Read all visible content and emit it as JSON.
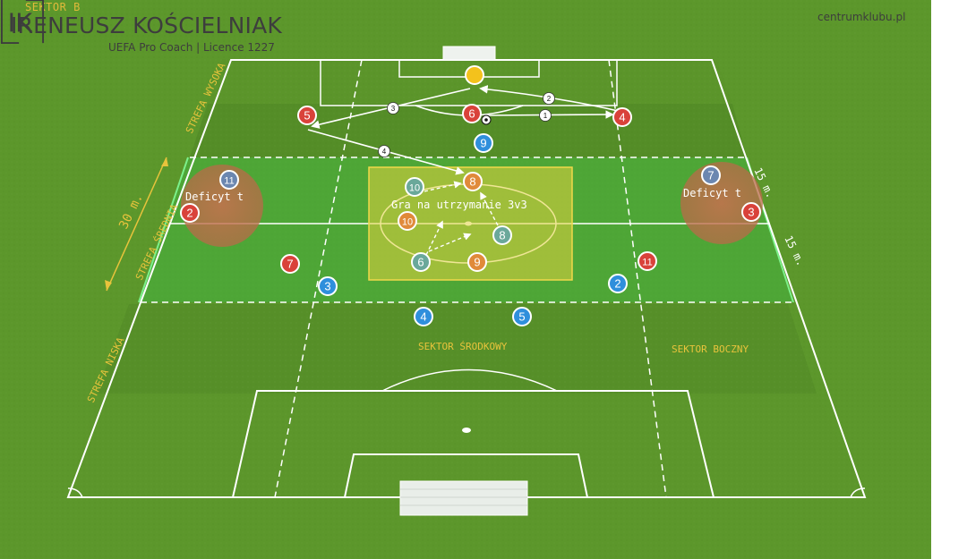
{
  "header": {
    "sector_label": "SEKTOR B",
    "coach_name": "IRENEUSZ KOŚCIELNIAK",
    "coach_subtitle": "UEFA Pro Coach  |  Licence 1227",
    "logo_text": "IK",
    "site": "centrumklubu.pl"
  },
  "zones": {
    "high": "STREFA WYSOKA",
    "middle": "STREFA ŚREDNIA",
    "low": "STREFA NISKA",
    "center_sector": "SEKTOR ŚRODKOWY",
    "side_sector": "SEKTOR BOCZNY"
  },
  "measurements": {
    "zone_depth": "30 m.",
    "right_upper": "15 m.",
    "right_lower": "15 m."
  },
  "annotations": {
    "deficit_left": "Deficyt t",
    "deficit_right": "Deficyt t",
    "rondo": "Gra na utrzymanie 3v3"
  },
  "colors": {
    "grass_light": "#5f9a2c",
    "grass_dark": "#4b8022",
    "zone_highlight": "#2fbf4a",
    "rondo_box": "#e2d23e",
    "deficit_circle": "#c4704c",
    "team_red": "#d9423a",
    "team_blue": "#2f8fdc",
    "team_orange": "#e08a3a",
    "team_teal": "#6aa89a",
    "team_slate": "#6b87b0",
    "goalkeeper": "#f3c21c",
    "zone_text": "#e8c33c"
  },
  "players": [
    {
      "id": "red-5",
      "number": "5",
      "team": "red"
    },
    {
      "id": "red-6",
      "number": "6",
      "team": "red"
    },
    {
      "id": "red-4",
      "number": "4",
      "team": "red"
    },
    {
      "id": "red-2",
      "number": "2",
      "team": "red"
    },
    {
      "id": "red-3",
      "number": "3",
      "team": "red"
    },
    {
      "id": "red-7",
      "number": "7",
      "team": "red"
    },
    {
      "id": "red-11",
      "number": "11",
      "team": "red"
    },
    {
      "id": "blue-9",
      "number": "9",
      "team": "blue"
    },
    {
      "id": "blue-3",
      "number": "3",
      "team": "blue"
    },
    {
      "id": "blue-4",
      "number": "4",
      "team": "blue"
    },
    {
      "id": "blue-5",
      "number": "5",
      "team": "blue"
    },
    {
      "id": "blue-2",
      "number": "2",
      "team": "blue"
    },
    {
      "id": "slate-11",
      "number": "11",
      "team": "slate"
    },
    {
      "id": "slate-7",
      "number": "7",
      "team": "slate"
    },
    {
      "id": "orange-8",
      "number": "8",
      "team": "orange"
    },
    {
      "id": "orange-10",
      "number": "10",
      "team": "orange"
    },
    {
      "id": "orange-9",
      "number": "9",
      "team": "orange"
    },
    {
      "id": "teal-10",
      "number": "10",
      "team": "teal"
    },
    {
      "id": "teal-8",
      "number": "8",
      "team": "teal"
    },
    {
      "id": "teal-6",
      "number": "6",
      "team": "teal"
    },
    {
      "id": "goalkeeper",
      "number": "",
      "team": "gk"
    }
  ],
  "pass_sequence": [
    "1",
    "2",
    "3",
    "4"
  ]
}
